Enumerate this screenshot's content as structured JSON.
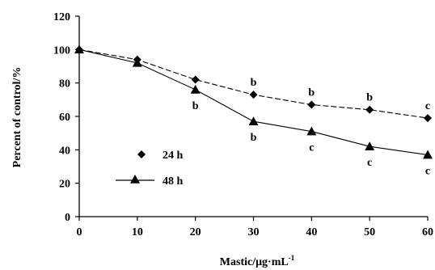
{
  "chart_data": {
    "type": "line",
    "xlabel": "Mastic/μg·mL",
    "xlabel_superscript": "-1",
    "ylabel": "Percent of control/%",
    "x_ticks": [
      0,
      10,
      20,
      30,
      40,
      50,
      60
    ],
    "y_ticks": [
      0,
      20,
      40,
      60,
      80,
      100,
      120
    ],
    "xlim": [
      0,
      60
    ],
    "ylim": [
      0,
      120
    ],
    "grid": false,
    "legend_position": "bottom-left",
    "x": [
      0,
      10,
      20,
      30,
      40,
      50,
      60
    ],
    "series": [
      {
        "name": "24 h",
        "marker": "diamond",
        "dash": "dashed",
        "values": [
          100,
          94,
          82,
          73,
          67,
          64,
          59
        ],
        "labels": [
          "",
          "",
          "",
          "b",
          "b",
          "b",
          "c"
        ],
        "label_pos": "above"
      },
      {
        "name": "48 h",
        "marker": "triangle",
        "dash": "solid",
        "values": [
          100,
          92,
          76,
          57,
          51,
          42,
          37
        ],
        "labels": [
          "",
          "",
          "b",
          "b",
          "c",
          "c",
          "c"
        ],
        "label_pos": "below"
      }
    ],
    "colors": {
      "line": "#000000",
      "marker": "#000000"
    }
  }
}
